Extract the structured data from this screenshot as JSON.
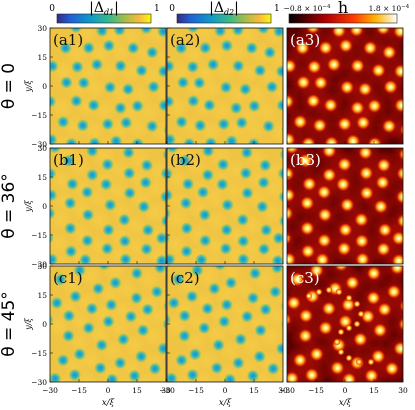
{
  "colorbars": [
    {
      "label": "|Δ",
      "sub": "d1",
      "min": "0",
      "max": "1"
    },
    {
      "label": "|Δ",
      "sub": "d2",
      "min": "0",
      "max": "1"
    },
    {
      "label": "h",
      "min": "−0.8 × 10",
      "min_exp": "−4",
      "max": "1.8 × 10",
      "max_exp": "−4"
    }
  ],
  "rows": [
    {
      "theta": "θ = 0",
      "panels": [
        "(a1)",
        "(a2)",
        "(a3)"
      ]
    },
    {
      "theta": "θ = 36°",
      "panels": [
        "(b1)",
        "(b2)",
        "(b3)"
      ]
    },
    {
      "theta": "θ = 45°",
      "panels": [
        "(c1)",
        "(c2)",
        "(c3)"
      ]
    }
  ],
  "axes": {
    "y_label": "y/ξ",
    "x_label": "x/ξ",
    "y_ticks": [
      "30",
      "15",
      "0",
      "−15",
      "−30"
    ],
    "x_ticks": [
      "−30",
      "−15",
      "0",
      "15",
      "30"
    ]
  }
}
